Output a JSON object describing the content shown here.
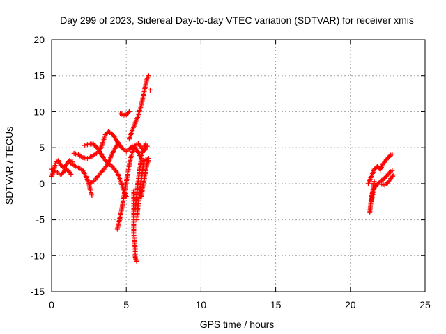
{
  "chart_data": {
    "type": "scatter",
    "title": "Day 299 of 2023, Sidereal Day-to-day VTEC variation (SDTVAR) for receiver xmis",
    "xlabel": "GPS time / hours",
    "ylabel": "SDTVAR / TECUs",
    "xlim": [
      0,
      25
    ],
    "ylim": [
      -15,
      20
    ],
    "xticks": [
      "0",
      "5",
      "10",
      "15",
      "20",
      "25"
    ],
    "yticks": [
      "-15",
      "-10",
      "-5",
      "0",
      "5",
      "10",
      "15",
      "20"
    ],
    "grid": true,
    "marker": "+",
    "color": "#ff0000",
    "series": [
      {
        "points": [
          [
            0.0,
            1.0
          ],
          [
            0.1,
            1.5
          ],
          [
            0.2,
            2.3
          ],
          [
            0.3,
            3.0
          ],
          [
            0.45,
            3.2
          ],
          [
            0.6,
            2.6
          ],
          [
            0.8,
            2.2
          ],
          [
            1.0,
            2.7
          ],
          [
            1.2,
            3.2
          ],
          [
            1.4,
            3.0
          ]
        ]
      },
      {
        "points": [
          [
            0.0,
            2.0
          ],
          [
            0.2,
            1.8
          ],
          [
            0.4,
            1.5
          ],
          [
            0.6,
            1.2
          ],
          [
            0.8,
            1.6
          ],
          [
            1.0,
            2.0
          ],
          [
            1.2,
            1.6
          ],
          [
            1.3,
            1.3
          ]
        ]
      },
      {
        "points": [
          [
            1.5,
            4.2
          ],
          [
            1.8,
            4.0
          ],
          [
            2.1,
            3.6
          ],
          [
            2.4,
            3.5
          ],
          [
            2.7,
            3.8
          ],
          [
            3.0,
            4.2
          ],
          [
            3.2,
            4.5
          ],
          [
            3.4,
            5.5
          ],
          [
            3.6,
            6.8
          ],
          [
            3.8,
            7.2
          ],
          [
            4.0,
            7.0
          ],
          [
            4.2,
            6.5
          ],
          [
            4.4,
            5.8
          ],
          [
            4.6,
            5.2
          ],
          [
            4.8,
            4.8
          ],
          [
            5.0,
            4.5
          ],
          [
            5.2,
            4.8
          ],
          [
            5.4,
            5.2
          ],
          [
            5.6,
            5.0
          ],
          [
            5.8,
            4.3
          ],
          [
            6.0,
            3.5
          ]
        ]
      },
      {
        "points": [
          [
            1.3,
            2.8
          ],
          [
            1.6,
            2.4
          ],
          [
            1.9,
            2.1
          ],
          [
            2.1,
            1.8
          ],
          [
            2.3,
            1.0
          ],
          [
            2.5,
            0.0
          ],
          [
            2.6,
            -1.0
          ],
          [
            2.7,
            -1.7
          ]
        ]
      },
      {
        "points": [
          [
            2.2,
            5.3
          ],
          [
            2.5,
            5.5
          ],
          [
            2.8,
            5.5
          ],
          [
            3.0,
            5.1
          ],
          [
            3.2,
            4.5
          ],
          [
            3.4,
            3.8
          ],
          [
            3.6,
            3.2
          ],
          [
            3.8,
            2.8
          ],
          [
            4.0,
            2.5
          ],
          [
            4.2,
            2.0
          ],
          [
            4.4,
            1.5
          ],
          [
            4.6,
            0.5
          ],
          [
            4.8,
            -0.8
          ],
          [
            5.0,
            -1.8
          ]
        ]
      },
      {
        "points": [
          [
            2.5,
            0.0
          ],
          [
            2.7,
            0.2
          ],
          [
            2.9,
            0.5
          ],
          [
            3.1,
            1.0
          ],
          [
            3.3,
            1.5
          ],
          [
            3.5,
            2.0
          ],
          [
            3.7,
            2.5
          ],
          [
            3.9,
            3.4
          ],
          [
            4.1,
            4.3
          ],
          [
            4.3,
            5.1
          ],
          [
            4.5,
            5.7
          ]
        ]
      },
      {
        "points": [
          [
            4.4,
            -6.3
          ],
          [
            4.5,
            -5.5
          ],
          [
            4.6,
            -4.5
          ],
          [
            4.7,
            -3.5
          ],
          [
            4.8,
            -2.3
          ],
          [
            4.9,
            -1.0
          ],
          [
            5.0,
            0.2
          ],
          [
            5.1,
            1.5
          ],
          [
            5.2,
            2.6
          ],
          [
            5.3,
            3.6
          ],
          [
            5.4,
            4.3
          ],
          [
            5.6,
            5.3
          ],
          [
            5.8,
            5.6
          ],
          [
            6.0,
            5.0
          ],
          [
            6.2,
            4.6
          ],
          [
            6.4,
            5.2
          ]
        ]
      },
      {
        "points": [
          [
            4.6,
            9.8
          ],
          [
            4.8,
            9.5
          ],
          [
            5.0,
            9.6
          ],
          [
            5.2,
            10.0
          ]
        ]
      },
      {
        "points": [
          [
            5.2,
            6.2
          ],
          [
            5.4,
            7.4
          ],
          [
            5.6,
            8.4
          ],
          [
            5.8,
            9.4
          ],
          [
            5.9,
            10.2
          ],
          [
            6.0,
            10.8
          ],
          [
            6.1,
            11.8
          ],
          [
            6.2,
            12.8
          ],
          [
            6.3,
            13.8
          ],
          [
            6.4,
            14.6
          ],
          [
            6.5,
            15.0
          ]
        ]
      },
      {
        "points": [
          [
            6.6,
            13.0
          ]
        ]
      },
      {
        "points": [
          [
            5.5,
            -1.0
          ],
          [
            5.5,
            -3.0
          ],
          [
            5.5,
            -5.0
          ],
          [
            5.5,
            -7.0
          ],
          [
            5.6,
            -9.0
          ],
          [
            5.6,
            -10.3
          ],
          [
            5.7,
            -10.8
          ]
        ]
      },
      {
        "points": [
          [
            5.6,
            -3.5
          ],
          [
            5.7,
            -1.5
          ],
          [
            5.8,
            0.5
          ],
          [
            5.9,
            2.0
          ],
          [
            6.0,
            3.5
          ],
          [
            6.1,
            4.5
          ],
          [
            6.2,
            5.2
          ],
          [
            6.3,
            5.5
          ]
        ]
      },
      {
        "points": [
          [
            5.7,
            -5.0
          ],
          [
            5.8,
            -3.0
          ],
          [
            5.9,
            -1.0
          ],
          [
            6.0,
            0.5
          ],
          [
            6.1,
            2.0
          ],
          [
            6.2,
            3.2
          ],
          [
            6.4,
            3.4
          ],
          [
            6.5,
            3.5
          ]
        ]
      },
      {
        "points": [
          [
            6.0,
            -2.0
          ],
          [
            6.1,
            -0.5
          ],
          [
            6.2,
            0.5
          ],
          [
            6.3,
            1.8
          ],
          [
            6.4,
            2.8
          ],
          [
            6.5,
            3.2
          ]
        ]
      },
      {
        "points": [
          [
            21.3,
            -4.0
          ],
          [
            21.35,
            -3.0
          ],
          [
            21.4,
            -2.0
          ],
          [
            21.5,
            -1.0
          ],
          [
            21.55,
            -0.2
          ],
          [
            21.6,
            0.3
          ]
        ]
      },
      {
        "points": [
          [
            21.2,
            0.0
          ],
          [
            21.4,
            1.0
          ],
          [
            21.6,
            2.0
          ],
          [
            21.8,
            2.4
          ],
          [
            22.0,
            1.9
          ],
          [
            22.2,
            2.8
          ],
          [
            22.4,
            3.3
          ],
          [
            22.6,
            3.8
          ],
          [
            22.8,
            4.1
          ]
        ]
      },
      {
        "points": [
          [
            21.4,
            -2.5
          ],
          [
            21.5,
            -1.5
          ],
          [
            21.6,
            -0.6
          ],
          [
            21.8,
            -0.1
          ],
          [
            22.0,
            0.3
          ],
          [
            22.2,
            0.6
          ],
          [
            22.4,
            1.0
          ],
          [
            22.6,
            1.5
          ],
          [
            22.8,
            1.8
          ]
        ]
      },
      {
        "points": [
          [
            22.1,
            -0.1
          ],
          [
            22.3,
            -0.2
          ],
          [
            22.5,
            0.1
          ],
          [
            22.7,
            0.7
          ],
          [
            22.9,
            1.2
          ]
        ]
      }
    ]
  }
}
